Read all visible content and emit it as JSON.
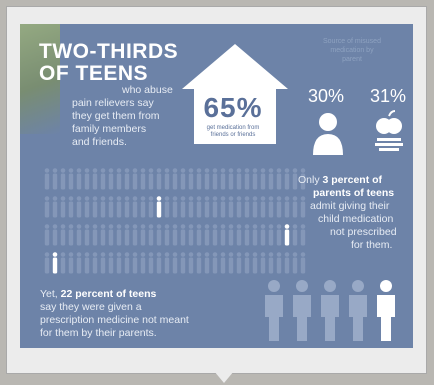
{
  "headline": {
    "line1": "TWO-THIRDS",
    "line2": "OF TEENS"
  },
  "intro": {
    "line1": "who abuse",
    "line2": "pain relievers say",
    "line3": "they get them from",
    "line4": "family members",
    "line5": "and friends."
  },
  "house": {
    "percent": "65%",
    "caption_line1": "get medication from",
    "caption_line2": "friends or friends"
  },
  "source_by_parent": {
    "header_line1": "Source of misused",
    "header_line2": "medication by",
    "header_line3": "parent",
    "dad_percent": "30%",
    "mom_percent": "31%"
  },
  "parents_stat": {
    "line1_pre": "Only ",
    "line1_strong": "3 percent of",
    "line2_strong": "parents of teens",
    "line3": "admit giving their",
    "line4": "child medication",
    "line5": "not prescribed",
    "line6": "for them."
  },
  "teens_stat": {
    "line1_pre": "Yet, ",
    "line1_strong": "22 percent of teens",
    "line2": "say they were given a",
    "line3": "prescription medicine not meant",
    "line4": "for them by their parents."
  },
  "colors": {
    "panel": "#6d83a8",
    "figure_dim": "#8497b8",
    "highlight": "#ffffff",
    "house_text": "#5a7099"
  },
  "icons": [
    "house-icon",
    "father-figure-icon",
    "apple-icon",
    "teen-figure-icon"
  ]
}
